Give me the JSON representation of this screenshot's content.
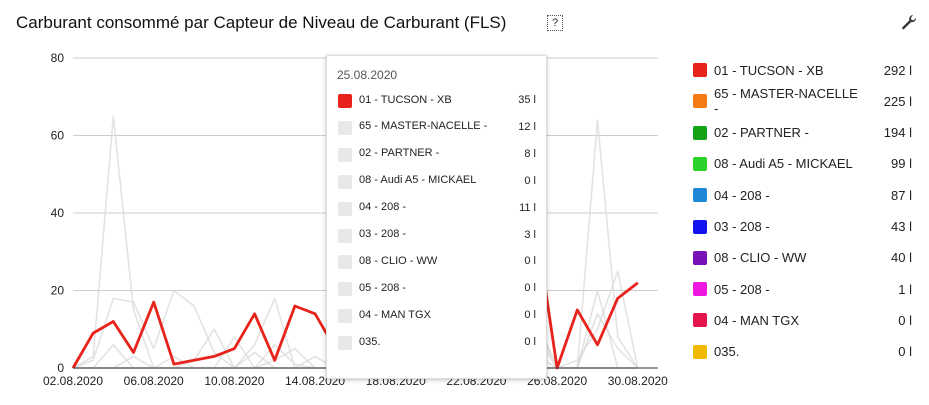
{
  "title": "Carburant consommé par Capteur de Niveau de Carburant (FLS)",
  "help_icon_text": "?",
  "chart_data": {
    "type": "line",
    "x": [
      "02.08.2020",
      "03.08.2020",
      "04.08.2020",
      "05.08.2020",
      "06.08.2020",
      "07.08.2020",
      "08.08.2020",
      "09.08.2020",
      "10.08.2020",
      "11.08.2020",
      "12.08.2020",
      "13.08.2020",
      "14.08.2020",
      "15.08.2020",
      "16.08.2020",
      "17.08.2020",
      "18.08.2020",
      "19.08.2020",
      "20.08.2020",
      "21.08.2020",
      "22.08.2020",
      "23.08.2020",
      "24.08.2020",
      "25.08.2020",
      "26.08.2020",
      "27.08.2020",
      "28.08.2020",
      "29.08.2020",
      "30.08.2020",
      "31.08.2020"
    ],
    "x_tick_labels": [
      "02.08.2020",
      "06.08.2020",
      "10.08.2020",
      "14.08.2020",
      "18.08.2020",
      "22.08.2020",
      "26.08.2020",
      "30.08.2020"
    ],
    "y_tick_labels": [
      "0",
      "20",
      "40",
      "60",
      "80"
    ],
    "ylim": [
      0,
      80
    ],
    "grid": true,
    "highlighted_series": 0,
    "hover_index": 23,
    "hover_date": "25.08.2020",
    "series": [
      {
        "name": "01 - TUCSON - XB",
        "color": "#e8231b",
        "total": "292 l",
        "tooltip": "35 l",
        "values": [
          0,
          9,
          12,
          4,
          17,
          1,
          2,
          3,
          5,
          14,
          2,
          16,
          14,
          5,
          0,
          0,
          0,
          0,
          0,
          0,
          0,
          0,
          8,
          35,
          0,
          15,
          6,
          18,
          22,
          null
        ]
      },
      {
        "name": "65 - MASTER-NACELLE -",
        "color": "#f67b14",
        "total": "225 l",
        "tooltip": "12 l",
        "values": [
          0,
          3,
          65,
          15,
          0,
          0,
          2,
          10,
          0,
          0,
          6,
          1,
          0,
          0,
          0,
          0,
          0,
          0,
          0,
          0,
          0,
          5,
          2,
          12,
          0,
          0,
          64,
          8,
          0,
          null
        ]
      },
      {
        "name": "02 - PARTNER -",
        "color": "#15a415",
        "total": "194 l",
        "tooltip": "8 l",
        "values": [
          0,
          2,
          18,
          17,
          5,
          20,
          16,
          4,
          0,
          6,
          18,
          0,
          3,
          0,
          0,
          0,
          0,
          0,
          0,
          0,
          0,
          4,
          0,
          8,
          0,
          2,
          10,
          25,
          0,
          null
        ]
      },
      {
        "name": "08 - Audi A5 - MICKAEL",
        "color": "#2bd12b",
        "total": "99 l",
        "tooltip": "0 l",
        "values": [
          0,
          0,
          6,
          0,
          0,
          3,
          0,
          0,
          8,
          0,
          2,
          5,
          0,
          0,
          0,
          0,
          0,
          0,
          0,
          0,
          0,
          6,
          2,
          0,
          0,
          0,
          14,
          5,
          0,
          null
        ]
      },
      {
        "name": "04 - 208 -",
        "color": "#1e88d8",
        "total": "87 l",
        "tooltip": "11 l",
        "values": [
          0,
          0,
          0,
          3,
          0,
          0,
          0,
          0,
          0,
          4,
          0,
          0,
          0,
          0,
          0,
          0,
          0,
          0,
          0,
          0,
          0,
          0,
          0,
          11,
          0,
          0,
          20,
          0,
          0,
          null
        ]
      },
      {
        "name": "03 - 208 -",
        "color": "#1414f0",
        "total": "43 l",
        "tooltip": "3 l",
        "values": [
          0,
          0,
          0,
          0,
          0,
          0,
          0,
          0,
          0,
          0,
          0,
          0,
          0,
          0,
          0,
          0,
          0,
          0,
          0,
          0,
          0,
          0,
          0,
          3,
          0,
          0,
          0,
          0,
          0,
          null
        ]
      },
      {
        "name": "08 - CLIO - WW",
        "color": "#7a10b8",
        "total": "40 l",
        "tooltip": "0 l",
        "values": [
          0,
          0,
          0,
          0,
          0,
          0,
          0,
          0,
          0,
          0,
          0,
          0,
          0,
          0,
          0,
          0,
          0,
          0,
          0,
          0,
          0,
          0,
          0,
          0,
          0,
          0,
          0,
          0,
          0,
          null
        ]
      },
      {
        "name": "05 - 208 -",
        "color": "#f018e0",
        "total": "1 l",
        "tooltip": "0 l",
        "values": [
          0,
          0,
          0,
          0,
          0,
          0,
          0,
          0,
          0,
          0,
          0,
          0,
          0,
          0,
          0,
          0,
          0,
          0,
          0,
          0,
          0,
          0,
          0,
          0,
          0,
          0,
          0,
          0,
          0,
          null
        ]
      },
      {
        "name": "04 - MAN TGX",
        "color": "#e3154c",
        "total": "0 l",
        "tooltip": "0 l",
        "values": [
          0,
          0,
          0,
          0,
          0,
          0,
          0,
          0,
          0,
          0,
          0,
          0,
          0,
          0,
          0,
          0,
          0,
          0,
          0,
          0,
          0,
          0,
          0,
          0,
          0,
          0,
          0,
          0,
          0,
          null
        ]
      },
      {
        "name": "035.",
        "color": "#f0b800",
        "total": "0 l",
        "tooltip": "0 l",
        "values": [
          0,
          0,
          0,
          0,
          0,
          0,
          0,
          0,
          0,
          0,
          0,
          0,
          0,
          0,
          0,
          0,
          0,
          0,
          0,
          0,
          0,
          0,
          0,
          0,
          0,
          0,
          0,
          0,
          0,
          null
        ]
      }
    ]
  }
}
